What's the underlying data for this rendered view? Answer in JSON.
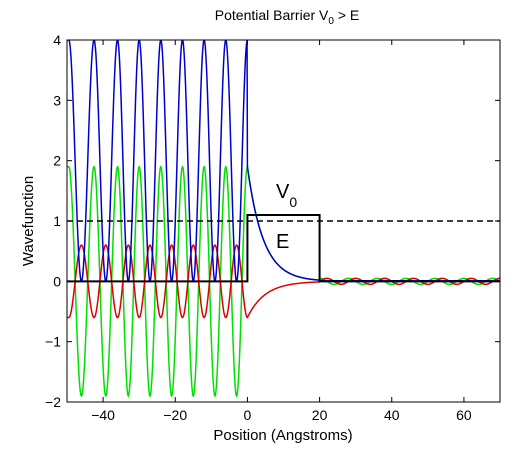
{
  "chart_data": {
    "type": "line",
    "title_main": "Potential Barrier V",
    "title_sub": "0",
    "title_tail": " > E",
    "xlabel": "Position (Angstroms)",
    "ylabel": "Wavefunction",
    "xlim": [
      -50,
      70
    ],
    "ylim": [
      -2,
      4
    ],
    "xticks": [
      -40,
      -20,
      0,
      20,
      40,
      60
    ],
    "xtick_labels": [
      "−40",
      "−20",
      "0",
      "20",
      "40",
      "60"
    ],
    "yticks": [
      -2,
      -1,
      0,
      1,
      2,
      3,
      4
    ],
    "ytick_labels": [
      "−2",
      "−1",
      "0",
      "1",
      "2",
      "3",
      "4"
    ],
    "grid": false,
    "energy_level": 1,
    "barrier": {
      "x0": 0,
      "x1": 20,
      "height": 1.1
    },
    "annotations": {
      "v0_main": "V",
      "v0_sub": "0",
      "e_label": "E"
    },
    "series": [
      {
        "key": "probability",
        "color": "#0000cc",
        "description": "|psi|^2",
        "incident_min": 0,
        "incident_max": 4,
        "x_peaks": [
          -49.5,
          -42.5,
          -36,
          -30,
          -24,
          -18,
          -12,
          -6
        ],
        "decay_at_0": 1.9,
        "decay_at_20": 0.02,
        "transmitted": 0.01
      },
      {
        "key": "real",
        "color": "#00e000",
        "incident_min": -1.9,
        "incident_max": 1.9,
        "x_peaks": [
          -49.5,
          -42.5,
          -36,
          -30,
          -24,
          -18,
          -12,
          -6
        ],
        "decay_at_0": 1.9,
        "decay_at_20": 0.02,
        "transmitted_amplitude": 0.05
      },
      {
        "key": "imag",
        "color": "#dd0000",
        "incident_min": -0.6,
        "incident_max": 0.6,
        "x_peaks": [
          -49.5,
          -42.5,
          -36,
          -30,
          -24,
          -18,
          -12,
          -6
        ],
        "decay_at_0": -0.6,
        "decay_at_20": -0.01,
        "transmitted_amplitude": 0.05
      }
    ],
    "colors": {
      "potential": "#000000",
      "energy_line": "#000000"
    }
  }
}
